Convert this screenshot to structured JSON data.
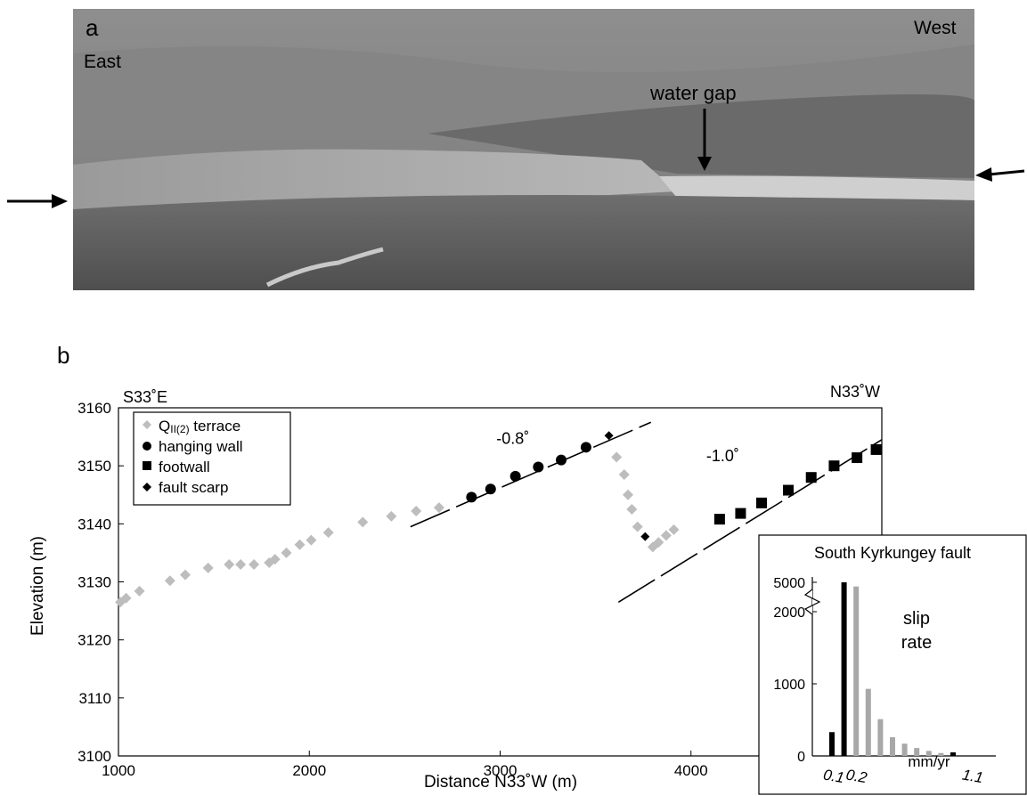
{
  "panel_a": {
    "letter": "a",
    "label_east": "East",
    "label_west": "West",
    "label_water_gap": "water gap"
  },
  "panel_b": {
    "letter": "b"
  },
  "chart_data": [
    {
      "type": "scatter",
      "title": "",
      "xlabel": "Distance N33˚W (m)",
      "ylabel": "Elevation (m)",
      "xlim": [
        1000,
        5000
      ],
      "ylim": [
        3100,
        3160
      ],
      "x_ticks": [
        1000,
        2000,
        3000,
        4000
      ],
      "y_ticks": [
        3100,
        3110,
        3120,
        3130,
        3140,
        3150,
        3160
      ],
      "direction_left": "S33˚E",
      "direction_right": "N33˚W",
      "legend_placement": "top-left",
      "grid": false,
      "series": [
        {
          "name": "QII(2) terrace",
          "name_main": "Q",
          "name_sub": "II(2)",
          "name_rest": " terrace",
          "marker": "diamond",
          "color": "#bdbdbd",
          "points": [
            [
              1010,
              3126.5
            ],
            [
              1040,
              3127.2
            ],
            [
              1110,
              3128.4
            ],
            [
              1270,
              3130.2
            ],
            [
              1350,
              3131.2
            ],
            [
              1470,
              3132.4
            ],
            [
              1580,
              3133.0
            ],
            [
              1640,
              3133.0
            ],
            [
              1710,
              3133.0
            ],
            [
              1790,
              3133.3
            ],
            [
              1820,
              3133.9
            ],
            [
              1880,
              3135.0
            ],
            [
              1950,
              3136.4
            ],
            [
              2010,
              3137.2
            ],
            [
              2100,
              3138.5
            ],
            [
              2280,
              3140.3
            ],
            [
              2430,
              3141.3
            ],
            [
              2560,
              3142.2
            ],
            [
              2680,
              3142.8
            ],
            [
              3610,
              3151.5
            ],
            [
              3650,
              3148.5
            ],
            [
              3670,
              3145.0
            ],
            [
              3690,
              3142.5
            ],
            [
              3720,
              3139.5
            ],
            [
              3800,
              3136.0
            ],
            [
              3830,
              3136.8
            ],
            [
              3870,
              3138.0
            ],
            [
              3910,
              3139.0
            ]
          ]
        },
        {
          "name": "hanging wall",
          "marker": "circle",
          "color": "#000000",
          "points": [
            [
              2850,
              3144.6
            ],
            [
              2950,
              3146.0
            ],
            [
              3080,
              3148.2
            ],
            [
              3200,
              3149.8
            ],
            [
              3320,
              3151.0
            ],
            [
              3450,
              3153.2
            ]
          ]
        },
        {
          "name": "footwall",
          "marker": "square",
          "color": "#000000",
          "points": [
            [
              4150,
              3140.8
            ],
            [
              4260,
              3141.8
            ],
            [
              4370,
              3143.6
            ],
            [
              4510,
              3145.8
            ],
            [
              4630,
              3148.0
            ],
            [
              4750,
              3150.0
            ],
            [
              4870,
              3151.4
            ],
            [
              4970,
              3152.8
            ]
          ]
        },
        {
          "name": "fault scarp",
          "marker": "diamond",
          "color": "#000000",
          "points": [
            [
              3570,
              3155.2
            ],
            [
              3760,
              3137.8
            ]
          ]
        }
      ],
      "fit_lines": [
        {
          "label": "-0.8˚",
          "from": [
            2530,
            3139.5
          ],
          "to": [
            3790,
            3157.5
          ]
        },
        {
          "label": "-1.0˚",
          "from": [
            3620,
            3126.5
          ],
          "to": [
            5000,
            3154.5
          ]
        }
      ]
    },
    {
      "type": "bar",
      "title": "South Kyrkungey fault",
      "label_line1": "slip",
      "label_line2": "rate",
      "xlabel": "mm/yr",
      "x_tick_labels": [
        "0.1",
        "0.2",
        "1.1"
      ],
      "ylim": [
        0,
        5000
      ],
      "y_ticks": [
        0,
        1000,
        2000,
        5000
      ],
      "y_axis_break": true,
      "black": "#000000",
      "gray": "#a8a8a8",
      "bars": [
        {
          "x": 0.1,
          "value": 330,
          "color": "black"
        },
        {
          "x": 0.2,
          "value": 5000,
          "color": "black"
        },
        {
          "x": 0.3,
          "value": 2350,
          "color": "gray"
        },
        {
          "x": 0.4,
          "value": 930,
          "color": "gray"
        },
        {
          "x": 0.5,
          "value": 510,
          "color": "gray"
        },
        {
          "x": 0.6,
          "value": 260,
          "color": "gray"
        },
        {
          "x": 0.7,
          "value": 170,
          "color": "gray"
        },
        {
          "x": 0.8,
          "value": 110,
          "color": "gray"
        },
        {
          "x": 0.9,
          "value": 70,
          "color": "gray"
        },
        {
          "x": 1.0,
          "value": 40,
          "color": "gray"
        },
        {
          "x": 1.1,
          "value": 50,
          "color": "black"
        }
      ]
    }
  ]
}
